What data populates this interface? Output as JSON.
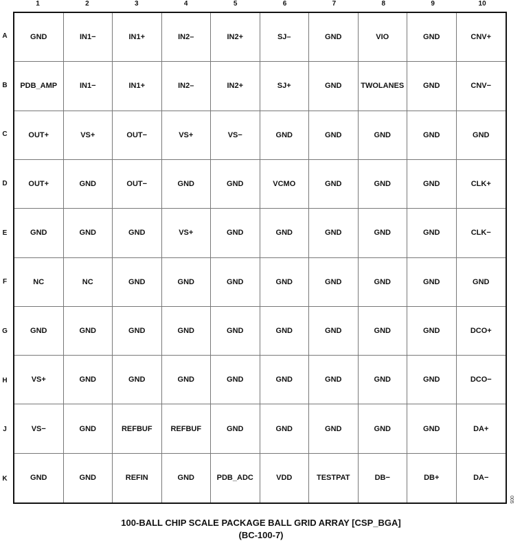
{
  "columns": [
    "1",
    "2",
    "3",
    "4",
    "5",
    "6",
    "7",
    "8",
    "9",
    "10"
  ],
  "rows": [
    {
      "label": "A",
      "pins": [
        "GND",
        "IN1−",
        "IN1+",
        "IN2–",
        "IN2+",
        "SJ–",
        "GND",
        "VIO",
        "GND",
        "CNV+"
      ]
    },
    {
      "label": "B",
      "pins": [
        "PDB_AMP",
        "IN1−",
        "IN1+",
        "IN2–",
        "IN2+",
        "SJ+",
        "GND",
        "TWOLANES",
        "GND",
        "CNV−"
      ]
    },
    {
      "label": "C",
      "pins": [
        "OUT+",
        "VS+",
        "OUT−",
        "VS+",
        "VS−",
        "GND",
        "GND",
        "GND",
        "GND",
        "GND"
      ]
    },
    {
      "label": "D",
      "pins": [
        "OUT+",
        "GND",
        "OUT−",
        "GND",
        "GND",
        "VCMO",
        "GND",
        "GND",
        "GND",
        "CLK+"
      ]
    },
    {
      "label": "E",
      "pins": [
        "GND",
        "GND",
        "GND",
        "VS+",
        "GND",
        "GND",
        "GND",
        "GND",
        "GND",
        "CLK−"
      ]
    },
    {
      "label": "F",
      "pins": [
        "NC",
        "NC",
        "GND",
        "GND",
        "GND",
        "GND",
        "GND",
        "GND",
        "GND",
        "GND"
      ]
    },
    {
      "label": "G",
      "pins": [
        "GND",
        "GND",
        "GND",
        "GND",
        "GND",
        "GND",
        "GND",
        "GND",
        "GND",
        "DCO+"
      ]
    },
    {
      "label": "H",
      "pins": [
        "VS+",
        "GND",
        "GND",
        "GND",
        "GND",
        "GND",
        "GND",
        "GND",
        "GND",
        "DCO−"
      ]
    },
    {
      "label": "J",
      "pins": [
        "VS−",
        "GND",
        "REFBUF",
        "REFBUF",
        "GND",
        "GND",
        "GND",
        "GND",
        "GND",
        "DA+"
      ]
    },
    {
      "label": "K",
      "pins": [
        "GND",
        "GND",
        "REFIN",
        "GND",
        "PDB_ADC",
        "VDD",
        "TESTPAT",
        "DB−",
        "DB+",
        "DA−"
      ]
    }
  ],
  "caption": {
    "line1": "100-BALL CHIP SCALE PACKAGE BALL GRID ARRAY [CSP_BGA]",
    "line2": "(BC-100-7)"
  },
  "figure_number": "005"
}
